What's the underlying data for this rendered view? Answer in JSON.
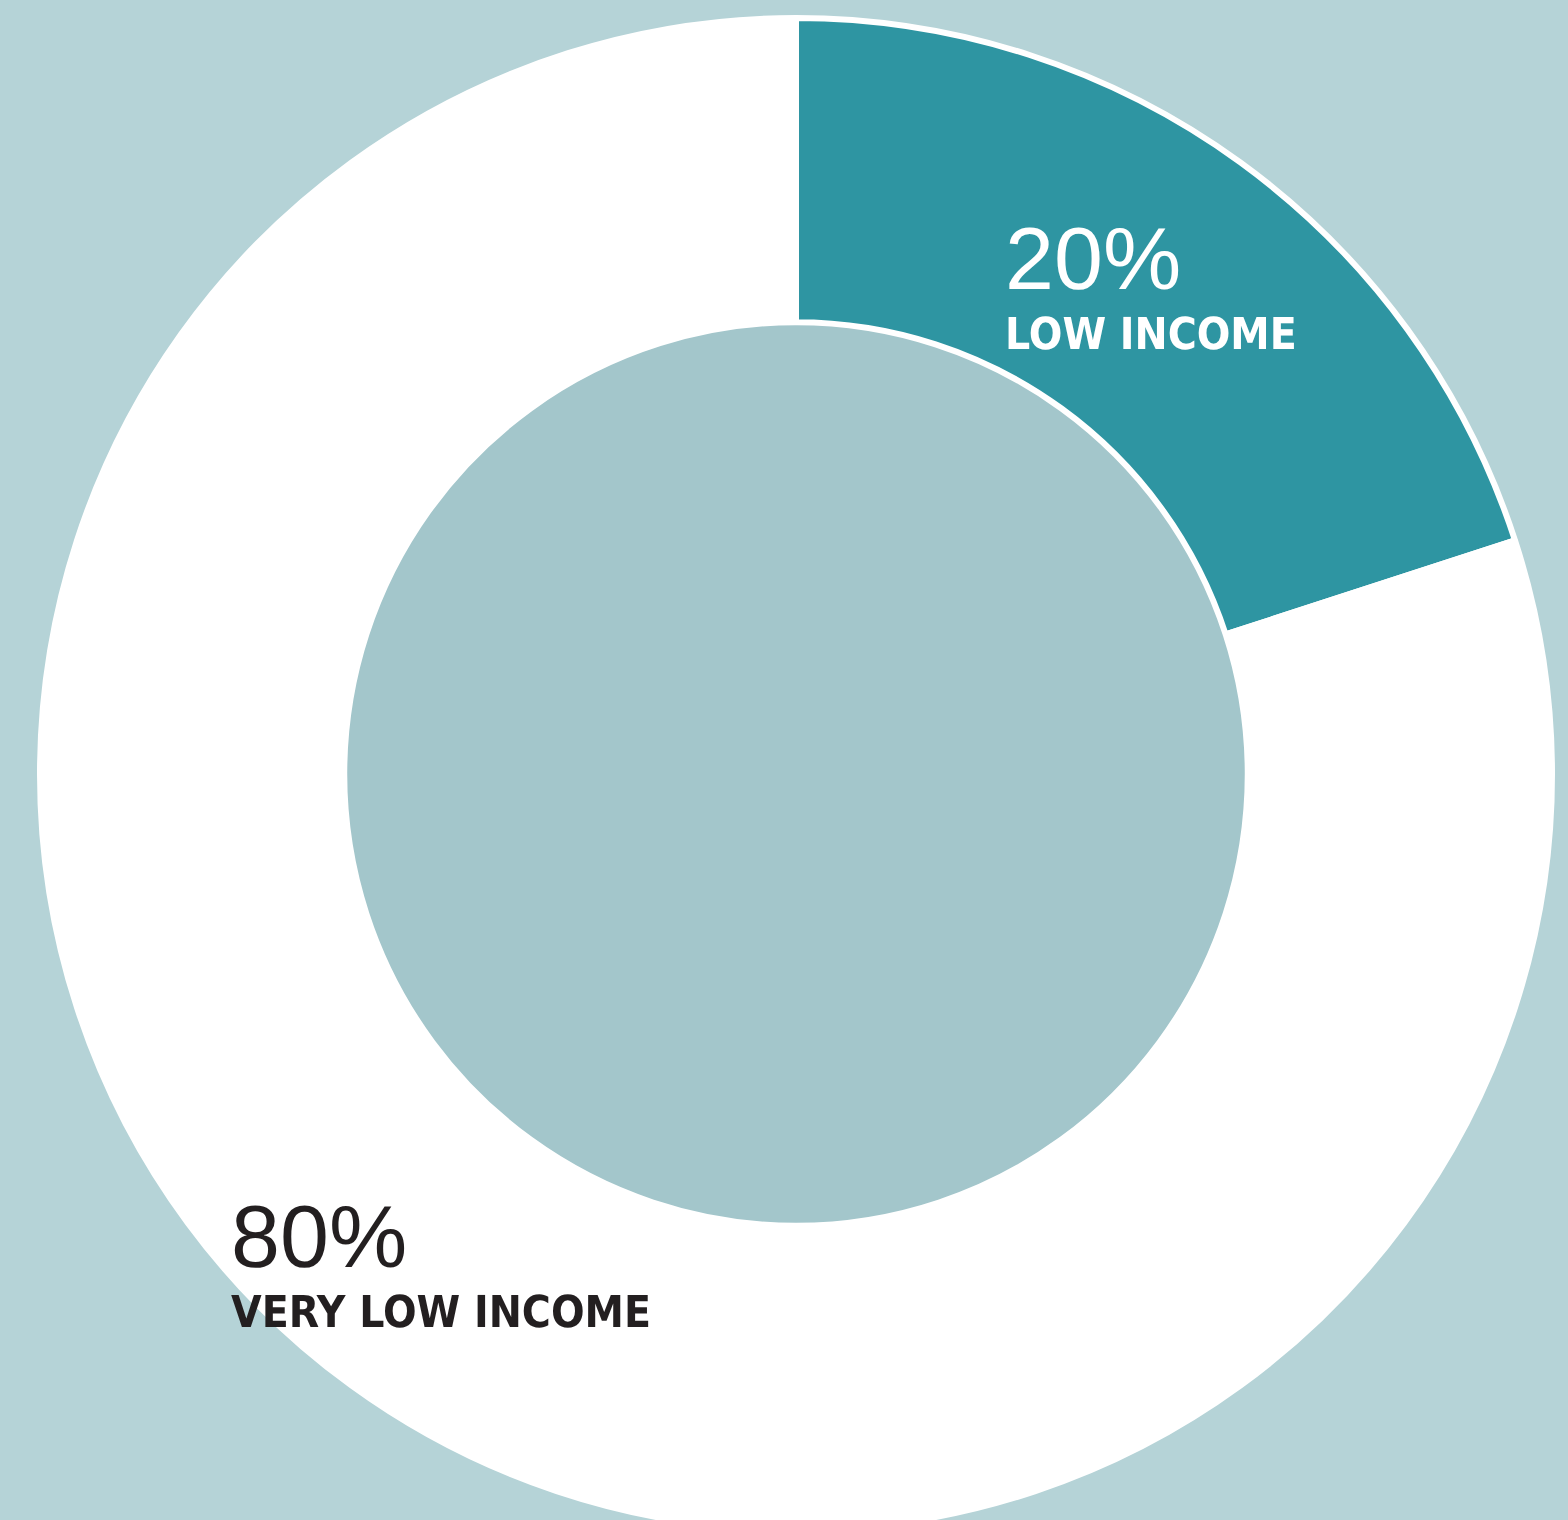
{
  "chart_data": {
    "type": "donut",
    "categories": [
      "LOW INCOME",
      "VERY LOW INCOME"
    ],
    "values": [
      20,
      80
    ],
    "colors": [
      "#2e95a2",
      "#ffffff"
    ],
    "value_labels": [
      "20%",
      "80%"
    ],
    "legend": false
  }
}
